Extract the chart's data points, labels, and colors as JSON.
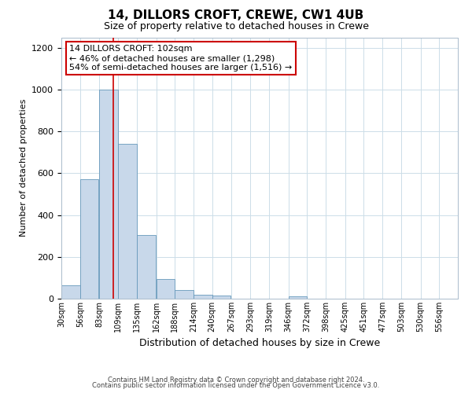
{
  "title": "14, DILLORS CROFT, CREWE, CW1 4UB",
  "subtitle": "Size of property relative to detached houses in Crewe",
  "xlabel": "Distribution of detached houses by size in Crewe",
  "ylabel": "Number of detached properties",
  "bin_labels": [
    "30sqm",
    "56sqm",
    "83sqm",
    "109sqm",
    "135sqm",
    "162sqm",
    "188sqm",
    "214sqm",
    "240sqm",
    "267sqm",
    "293sqm",
    "319sqm",
    "346sqm",
    "372sqm",
    "398sqm",
    "425sqm",
    "451sqm",
    "477sqm",
    "503sqm",
    "530sqm",
    "556sqm"
  ],
  "bin_left_edges": [
    30,
    56,
    83,
    109,
    135,
    162,
    188,
    214,
    240,
    267,
    293,
    319,
    346,
    372,
    398,
    425,
    451,
    477,
    503,
    530,
    556
  ],
  "bar_heights": [
    65,
    570,
    1000,
    740,
    305,
    95,
    40,
    18,
    15,
    0,
    0,
    0,
    10,
    0,
    0,
    0,
    0,
    0,
    0,
    0
  ],
  "bar_color": "#c8d8ea",
  "bar_edgecolor": "#6699bb",
  "property_line_x": 102,
  "property_line_color": "#cc0000",
  "annotation_line1": "14 DILLORS CROFT: 102sqm",
  "annotation_line2": "← 46% of detached houses are smaller (1,298)",
  "annotation_line3": "54% of semi-detached houses are larger (1,516) →",
  "annotation_box_edgecolor": "#cc0000",
  "ylim": [
    0,
    1250
  ],
  "yticks": [
    0,
    200,
    400,
    600,
    800,
    1000,
    1200
  ],
  "footer1": "Contains HM Land Registry data © Crown copyright and database right 2024.",
  "footer2": "Contains public sector information licensed under the Open Government Licence v3.0.",
  "background_color": "#ffffff",
  "grid_color": "#ccdde8",
  "title_fontsize": 11,
  "subtitle_fontsize": 9,
  "ylabel_fontsize": 8,
  "xlabel_fontsize": 9
}
